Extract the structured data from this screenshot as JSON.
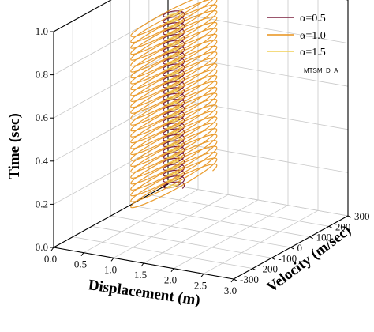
{
  "chart_data": {
    "type": "line",
    "projection": "3d",
    "xlabel": "Displacement (m)",
    "ylabel": "Velocity (m/sec)",
    "zlabel": "Time (sec)",
    "x_ticks": [
      "0.0",
      "0.5",
      "1.0",
      "1.5",
      "2.0",
      "2.5",
      "3.0"
    ],
    "y_ticks": [
      "-300",
      "-200",
      "-100",
      "0",
      "100",
      "200",
      "300"
    ],
    "z_ticks": [
      "0.0",
      "0.2",
      "0.4",
      "0.6",
      "0.8",
      "1.0"
    ],
    "xlim": [
      0,
      3
    ],
    "ylim": [
      -300,
      300
    ],
    "zlim": [
      0,
      1
    ],
    "grid": true,
    "legend_position": "top-right",
    "annotation": "MTSM_D_A",
    "series": [
      {
        "name": "α=0.5",
        "color": "#7a1f3d",
        "x_center": 1.05,
        "x_amplitude": 0.12,
        "y_center": 0,
        "y_amplitude": 40,
        "t_start": 0.18,
        "t_end": 1.0,
        "cycles": 30,
        "phase": 0.2
      },
      {
        "name": "α=1.0",
        "color": "#e8921a",
        "x_center": 1.05,
        "x_amplitude": 0.16,
        "y_center": 0,
        "y_amplitude": 220,
        "t_start": 0.18,
        "t_end": 1.0,
        "cycles": 30,
        "phase": 0.9
      },
      {
        "name": "α=1.5",
        "color": "#f0cf55",
        "x_center": 1.05,
        "x_amplitude": 0.07,
        "y_center": 0,
        "y_amplitude": 25,
        "t_start": 0.18,
        "t_end": 1.0,
        "cycles": 30,
        "phase": 1.7
      }
    ]
  }
}
